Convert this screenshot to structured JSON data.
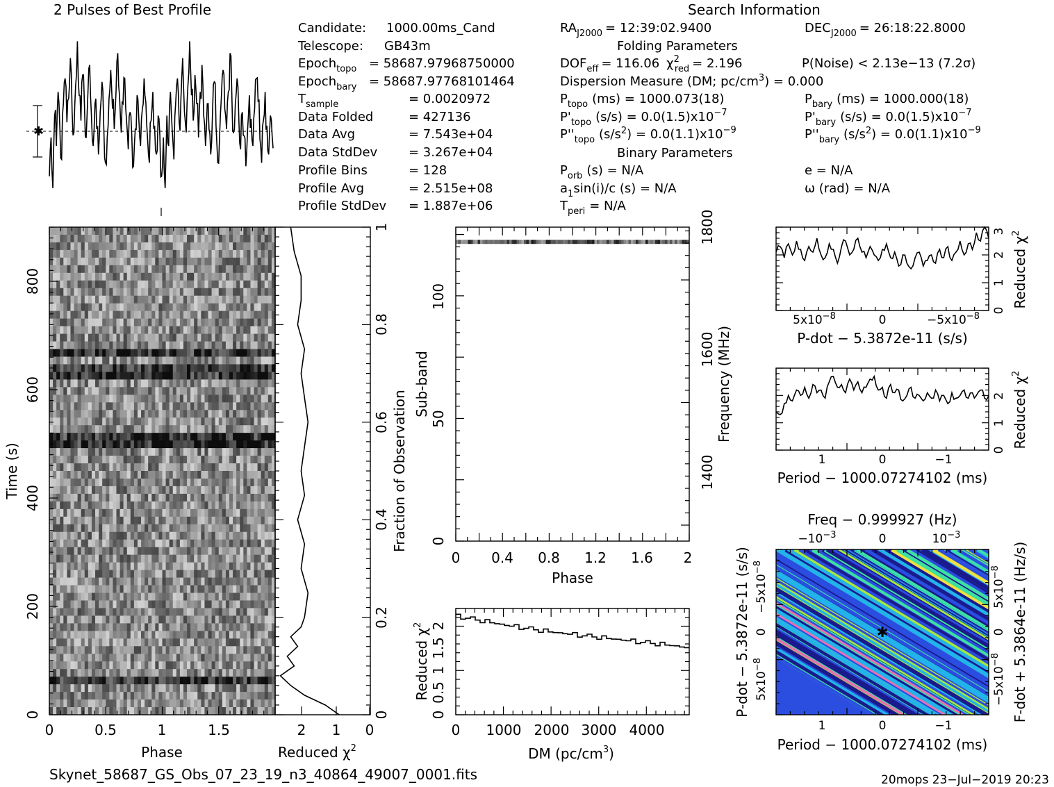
{
  "titles": {
    "profile": "2 Pulses of Best Profile",
    "search": "Search Information",
    "folding": "Folding Parameters",
    "binary": "Binary Parameters"
  },
  "info_left": [
    {
      "label": "Candidate:",
      "value": "1000.00ms_Cand"
    },
    {
      "label": "Telescope:",
      "value": "GB43m"
    },
    {
      "label": "Epoch",
      "sub": "topo",
      "value": "= 58687.97968750000"
    },
    {
      "label": "Epoch",
      "sub": "bary",
      "value": "= 58687.97768101464"
    },
    {
      "label": "T",
      "sub": "sample",
      "value": "= 0.0020972"
    },
    {
      "label": "Data Folded",
      "value": "= 427136"
    },
    {
      "label": "Data Avg",
      "value": "= 7.543e+04"
    },
    {
      "label": "Data StdDev",
      "value": "= 3.267e+04"
    },
    {
      "label": "Profile Bins",
      "value": "= 128"
    },
    {
      "label": "Profile Avg",
      "value": "= 2.515e+08"
    },
    {
      "label": "Profile StdDev",
      "value": "= 1.887e+06"
    }
  ],
  "info_mid": {
    "ra": "RA",
    "ra_sub": "J2000",
    "ra_val": "= 12:39:02.9400",
    "dof": "DOF",
    "dof_sub": "eff",
    "dof_val": "= 116.06",
    "chi": "χ",
    "chi_sup": "2",
    "chi_sub": "red",
    "chi_val": "= 2.196",
    "dm_line_a": "Dispersion Measure (DM; pc/cm",
    "dm_line_sup": "3",
    "dm_line_b": ") = 0.000",
    "ptopo": "P",
    "ptopo_sub": "topo",
    "ptopo_val": "(ms) =  1000.073(18)",
    "pdtopo": "P'",
    "pdtopo_sub": "topo",
    "pdtopo_val": "(s/s) = 0.0(1.5)x10",
    "pdtopo_exp": "−7",
    "pddtopo": "P''",
    "pddtopo_sub": "topo",
    "pddtopo_val_a": "(s/s",
    "pddtopo_val_sup": "2",
    "pddtopo_val_b": ") = 0.0(1.1)x10",
    "pddtopo_exp": "−9",
    "porb": "P",
    "porb_sub": "orb",
    "porb_val": "(s) = N/A",
    "a1_a": "a",
    "a1_sub": "1",
    "a1_b": "sin(i)/c (s) = N/A",
    "tperi": "T",
    "tperi_sub": "peri",
    "tperi_val": "= N/A"
  },
  "info_right": {
    "dec": "DEC",
    "dec_sub": "J2000",
    "dec_val": "= 26:18:22.8000",
    "pnoise": "P(Noise) < 2.13e−13  (7.2σ)",
    "pbary": "P",
    "pbary_sub": "bary",
    "pbary_val": "(ms) =  1000.000(18)",
    "pdbary": "P'",
    "pdbary_sub": "bary",
    "pdbary_val": "(s/s) = 0.0(1.5)x10",
    "pdbary_exp": "−7",
    "pddbary": "P''",
    "pddbary_sub": "bary",
    "pddbary_val_a": "(s/s",
    "pddbary_val_sup": "2",
    "pddbary_val_b": ") = 0.0(1.1)x10",
    "pddbary_exp": "−9",
    "ecc": "e = N/A",
    "omega": "ω (rad) = N/A"
  },
  "footer": {
    "filename": "Skynet_58687_GS_Obs_07_23_19_n3_40864_49007_0001.fits",
    "stamp": "20mops 23−Jul−2019 20:23"
  },
  "colors": {
    "ink": "#000000",
    "background": "#ffffff",
    "colormap": [
      "#1a1a8c",
      "#2b4de0",
      "#22b3e8",
      "#3de0a0",
      "#a8e83a",
      "#f0e040",
      "#e86fb0"
    ]
  },
  "chart_data": [
    {
      "type": "line",
      "id": "pulse-profile",
      "title": "2 Pulses of Best Profile",
      "xlabel": "",
      "ylabel": "",
      "x_pulses": 2,
      "profile_bins": 128,
      "y_units": "arbitrary",
      "error_bar": true,
      "samples": [
        0.12,
        0.35,
        0.05,
        0.48,
        0.3,
        0.62,
        0.4,
        0.22,
        0.55,
        0.7,
        0.44,
        0.58,
        0.82,
        0.5,
        0.38,
        0.66,
        0.92,
        0.6,
        0.45,
        0.72,
        0.55,
        0.35,
        0.62,
        0.78,
        0.48,
        0.3,
        0.55,
        0.4,
        0.25,
        0.5,
        0.68,
        0.42,
        0.2,
        0.35,
        0.58,
        0.75,
        0.52,
        0.4,
        0.62,
        0.85,
        0.6,
        0.38,
        0.55,
        0.7,
        0.45,
        0.28,
        0.5,
        0.36,
        0.18,
        0.4,
        0.6,
        0.46,
        0.3,
        0.52,
        0.7,
        0.56,
        0.34,
        0.2,
        0.45,
        0.62,
        0.42,
        0.25,
        0.48,
        0.36
      ]
    },
    {
      "type": "heatmap",
      "id": "time-phase",
      "xlabel": "Phase",
      "ylabel": "Time (s)",
      "xlim": [
        0,
        2
      ],
      "ylim": [
        0,
        900
      ],
      "x_ticks": [
        "0",
        "0.5",
        "1",
        "1.5"
      ],
      "y_ticks": [
        "0",
        "200",
        "400",
        "600",
        "800"
      ],
      "right_axis_label": "Fraction of Observation",
      "right_ticks": [
        "0",
        "0.2",
        "0.4",
        "0.6",
        "0.8",
        "1"
      ],
      "dark_rows_at_fraction": [
        0.07,
        0.56,
        0.7,
        0.74
      ]
    },
    {
      "type": "line",
      "id": "time-reduced-chi2",
      "xlabel": "Reduced χ2",
      "x_ticks": [
        "2",
        "1",
        "0"
      ],
      "fraction": [
        0.0,
        0.02,
        0.04,
        0.06,
        0.08,
        0.1,
        0.12,
        0.14,
        0.16,
        0.18,
        0.2,
        0.25,
        0.3,
        0.35,
        0.4,
        0.45,
        0.5,
        0.55,
        0.6,
        0.65,
        0.7,
        0.75,
        0.8,
        0.85,
        0.9,
        0.95,
        1.0
      ],
      "chi2": [
        0.9,
        1.3,
        1.9,
        2.3,
        2.6,
        2.2,
        2.4,
        2.1,
        2.3,
        2.0,
        1.9,
        1.8,
        2.0,
        1.9,
        2.1,
        1.9,
        2.0,
        1.9,
        1.8,
        1.9,
        2.0,
        1.9,
        2.1,
        2.0,
        2.0,
        2.2,
        2.3
      ]
    },
    {
      "type": "heatmap",
      "id": "subband-phase",
      "xlabel": "Phase",
      "ylabel": "Sub-band",
      "right_axis_label": "Frequency (MHz)",
      "xlim": [
        0,
        2
      ],
      "ylim": [
        0,
        128
      ],
      "x_ticks": [
        "0",
        "0.4",
        "0.8",
        "1.2",
        "1.6",
        "2"
      ],
      "y_ticks": [
        "0",
        "50",
        "100"
      ],
      "right_ticks": [
        "1400",
        "1600",
        "1800"
      ],
      "signal_subband": 122
    },
    {
      "type": "line",
      "id": "dm-chi2",
      "xlabel": "DM (pc/cm3)",
      "ylabel": "Reduced χ2",
      "xlim": [
        0,
        4900
      ],
      "ylim": [
        0,
        2.4
      ],
      "x_ticks": [
        "0",
        "1000",
        "2000",
        "3000",
        "4000"
      ],
      "y_ticks": [
        "0",
        "0.5",
        "1",
        "1.5",
        "2"
      ],
      "x": [
        0,
        500,
        1000,
        1500,
        2000,
        2500,
        3000,
        3500,
        4000,
        4500,
        4900
      ],
      "y": [
        2.22,
        2.12,
        2.02,
        1.94,
        1.86,
        1.8,
        1.74,
        1.68,
        1.62,
        1.56,
        1.5
      ]
    },
    {
      "type": "line",
      "id": "pdot-chi2",
      "xlabel": "P-dot − 5.3872e-11 (s/s)",
      "ylabel": "Reduced χ2",
      "ylim": [
        0,
        3
      ],
      "x_ticks": [
        "5x10−8",
        "0",
        "−5x10−8"
      ],
      "y_ticks": [
        "0",
        "1",
        "2",
        "3"
      ],
      "y": [
        2.1,
        2.3,
        1.9,
        2.4,
        2.0,
        2.5,
        2.2,
        1.8,
        2.3,
        2.1,
        2.6,
        2.0,
        1.9,
        2.4,
        2.2,
        1.7,
        2.3,
        2.5,
        2.0,
        2.2,
        2.6,
        2.1,
        1.9,
        2.3,
        2.0,
        1.8,
        2.2,
        2.4,
        1.9,
        2.1,
        1.6,
        2.0,
        1.7,
        1.5,
        1.9,
        2.1,
        1.6,
        1.8,
        2.0,
        1.7,
        2.2,
        1.9,
        2.3,
        1.8,
        2.1,
        2.5,
        2.0,
        2.4,
        2.2,
        2.8,
        2.5,
        3.0,
        2.6
      ]
    },
    {
      "type": "line",
      "id": "period-chi2",
      "xlabel": "Period − 1000.07274102 (ms)",
      "ylabel": "Reduced χ2",
      "ylim": [
        0,
        3
      ],
      "x_ticks": [
        "1",
        "0",
        "−1"
      ],
      "y_ticks": [
        "0",
        "1",
        "2"
      ],
      "y": [
        1.4,
        1.3,
        1.7,
        2.0,
        1.8,
        2.2,
        2.0,
        2.3,
        1.9,
        2.4,
        2.1,
        2.2,
        1.9,
        2.5,
        2.7,
        2.3,
        2.4,
        2.1,
        2.6,
        2.2,
        2.5,
        2.1,
        2.3,
        2.6,
        2.7,
        2.2,
        2.3,
        1.9,
        2.4,
        2.1,
        2.2,
        1.8,
        2.0,
        2.3,
        1.9,
        2.0,
        1.8,
        2.1,
        1.9,
        2.2,
        1.8,
        2.0,
        1.7,
        2.1,
        1.9,
        2.0,
        2.2,
        1.9,
        2.1,
        2.0,
        2.2,
        1.9,
        2.0
      ]
    },
    {
      "type": "heatmap",
      "id": "period-pdot",
      "xlabel": "Period − 1000.07274102 (ms)",
      "ylabel": "P-dot − 5.3872e-11 (s/s)",
      "top_label": "Freq − 0.999927 (Hz)",
      "right_label": "F-dot + 5.3864e-11 (Hz/s)",
      "x_ticks": [
        "1",
        "0",
        "−1"
      ],
      "top_ticks": [
        "−10−3",
        "0",
        "10−3"
      ],
      "y_ticks": [
        "−5x10−8",
        "0",
        "5x10−8"
      ],
      "right_ticks": [
        "5x10−8",
        "0",
        "−5x10−8"
      ],
      "best_marker": [
        0,
        0
      ]
    }
  ]
}
